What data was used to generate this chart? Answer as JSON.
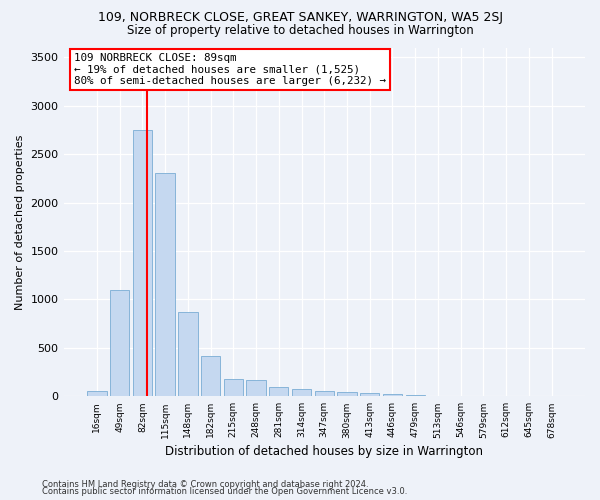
{
  "title1": "109, NORBRECK CLOSE, GREAT SANKEY, WARRINGTON, WA5 2SJ",
  "title2": "Size of property relative to detached houses in Warrington",
  "xlabel": "Distribution of detached houses by size in Warrington",
  "ylabel": "Number of detached properties",
  "bar_labels": [
    "16sqm",
    "49sqm",
    "82sqm",
    "115sqm",
    "148sqm",
    "182sqm",
    "215sqm",
    "248sqm",
    "281sqm",
    "314sqm",
    "347sqm",
    "380sqm",
    "413sqm",
    "446sqm",
    "479sqm",
    "513sqm",
    "546sqm",
    "579sqm",
    "612sqm",
    "645sqm",
    "678sqm"
  ],
  "bar_values": [
    55,
    1100,
    2750,
    2300,
    870,
    420,
    175,
    165,
    100,
    75,
    60,
    45,
    30,
    20,
    10,
    5,
    3,
    2,
    2,
    1,
    1
  ],
  "bar_color": "#c5d8f0",
  "bar_edge_color": "#7aadd4",
  "vline_color": "red",
  "vline_x": 2.21,
  "annotation_line1": "109 NORBRECK CLOSE: 89sqm",
  "annotation_line2": "← 19% of detached houses are smaller (1,525)",
  "annotation_line3": "80% of semi-detached houses are larger (6,232) →",
  "annotation_box_color": "white",
  "annotation_box_edge_color": "red",
  "footer1": "Contains HM Land Registry data © Crown copyright and database right 2024.",
  "footer2": "Contains public sector information licensed under the Open Government Licence v3.0.",
  "bg_color": "#eef2f9",
  "plot_bg_color": "#eef2f9",
  "ylim": [
    0,
    3600
  ],
  "yticks": [
    0,
    500,
    1000,
    1500,
    2000,
    2500,
    3000,
    3500
  ]
}
